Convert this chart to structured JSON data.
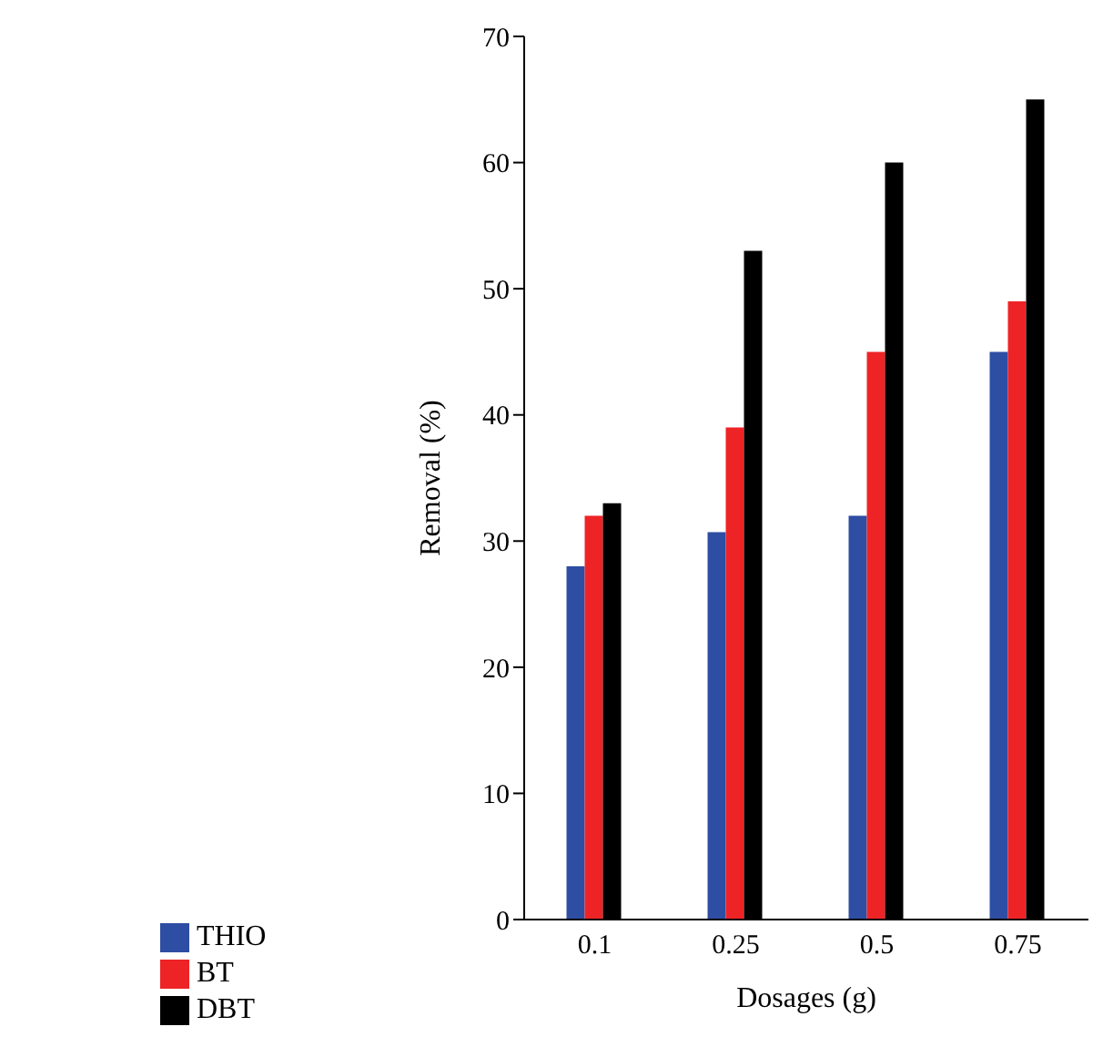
{
  "chart_data": {
    "type": "bar",
    "xlabel": "Dosages (g)",
    "ylabel": "Removal (%)",
    "categories": [
      "0.1",
      "0.25",
      "0.5",
      "0.75"
    ],
    "series": [
      {
        "name": "THIO",
        "color": "#2e4ea3",
        "values": [
          28,
          30.7,
          32,
          45
        ]
      },
      {
        "name": "BT",
        "color": "#ee2326",
        "values": [
          32,
          39,
          45,
          49
        ]
      },
      {
        "name": "DBT",
        "color": "#000000",
        "values": [
          33,
          53,
          60,
          65
        ]
      }
    ],
    "ylim": [
      0,
      70
    ],
    "yticks": [
      0,
      10,
      20,
      30,
      40,
      50,
      60,
      70
    ],
    "grid": false,
    "legend": "bottom left"
  }
}
